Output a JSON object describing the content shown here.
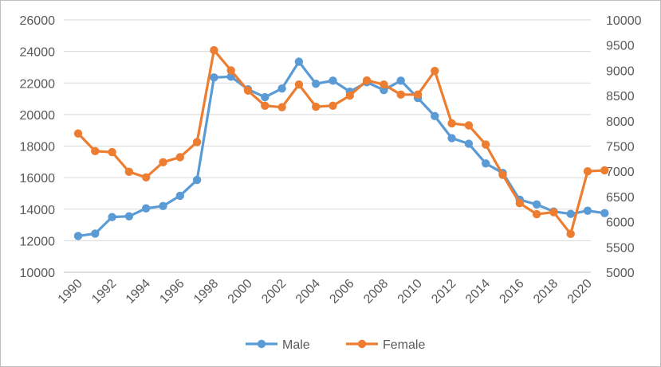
{
  "chart_data": {
    "type": "line",
    "title": "",
    "xlabel": "",
    "ylabel": "",
    "x": [
      1990,
      1991,
      1992,
      1993,
      1994,
      1995,
      1996,
      1997,
      1998,
      1999,
      2000,
      2001,
      2002,
      2003,
      2004,
      2005,
      2006,
      2007,
      2008,
      2009,
      2010,
      2011,
      2012,
      2013,
      2014,
      2015,
      2016,
      2017,
      2018,
      2019,
      2020,
      2021
    ],
    "x_tick_labels": [
      "1990",
      "1992",
      "1994",
      "1996",
      "1998",
      "2000",
      "2002",
      "2004",
      "2006",
      "2008",
      "2010",
      "2012",
      "2014",
      "2016",
      "2018",
      "2020"
    ],
    "y_left": {
      "min": 10000,
      "max": 26000,
      "step": 2000,
      "tick_labels": [
        "10000",
        "12000",
        "14000",
        "16000",
        "18000",
        "20000",
        "22000",
        "24000",
        "26000"
      ]
    },
    "y_right": {
      "min": 5000,
      "max": 10000,
      "step": 500,
      "tick_labels": [
        "5000",
        "5500",
        "6000",
        "6500",
        "7000",
        "7500",
        "8000",
        "8500",
        "9000",
        "9500",
        "10000"
      ]
    },
    "grid": "horizontal",
    "legend_position": "bottom",
    "series": [
      {
        "name": "Male",
        "axis": "left",
        "color": "#5b9bd5",
        "values": [
          12300,
          12450,
          13500,
          13550,
          14050,
          14200,
          14850,
          15850,
          22350,
          22400,
          21600,
          21100,
          21650,
          23350,
          21950,
          22150,
          21450,
          22050,
          21550,
          22150,
          21050,
          19900,
          18500,
          18150,
          16900,
          16300,
          14600,
          14300,
          13850,
          13700,
          13900,
          13750
        ]
      },
      {
        "name": "Female",
        "axis": "right",
        "color": "#ed7d31",
        "values": [
          7750,
          7400,
          7380,
          6990,
          6880,
          7180,
          7280,
          7580,
          9400,
          9000,
          8600,
          8300,
          8270,
          8720,
          8280,
          8300,
          8500,
          8800,
          8720,
          8520,
          8520,
          8990,
          7950,
          7910,
          7530,
          6930,
          6370,
          6150,
          6190,
          5760,
          7000,
          7020
        ]
      }
    ]
  }
}
